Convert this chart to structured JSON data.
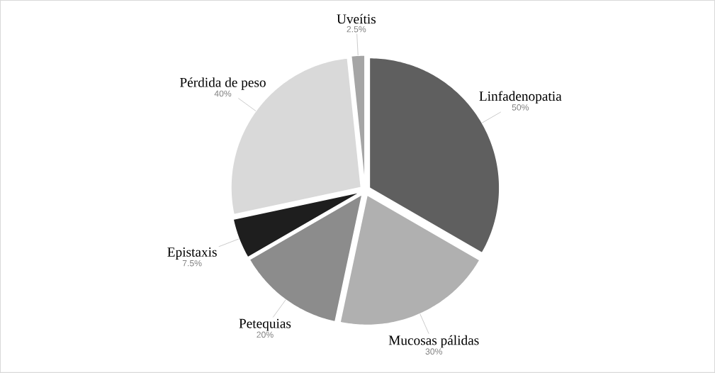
{
  "chart_data": {
    "type": "pie",
    "categories": [
      "Linfadenopatia",
      "Mucosas pálidas",
      "Petequias",
      "Epistaxis",
      "Pérdida de peso",
      "Uveítis"
    ],
    "values": [
      50,
      30,
      20,
      7.5,
      40,
      2.5
    ],
    "colors": [
      "#5f5f5f",
      "#b0b0b0",
      "#8c8c8c",
      "#1e1e1e",
      "#d9d9d9",
      "#a5a5a5"
    ],
    "value_labels": [
      "50%",
      "30%",
      "20%",
      "7.5%",
      "40%",
      "2.5%"
    ]
  }
}
